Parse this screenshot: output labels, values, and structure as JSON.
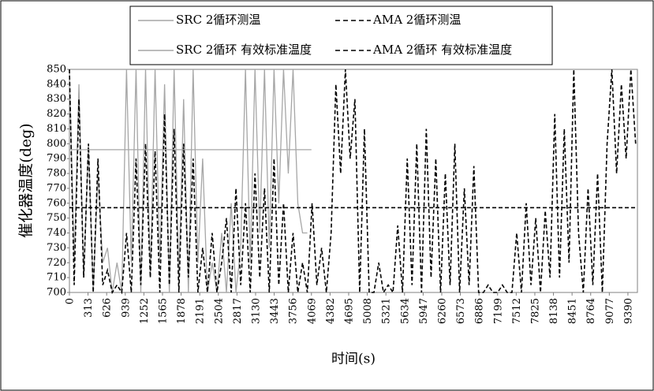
{
  "chart_data": {
    "type": "line",
    "xlabel": "时间(s)",
    "ylabel": "催化器温度(deg)",
    "xlim": [
      0,
      9550
    ],
    "xticks": [
      0,
      313,
      626,
      939,
      1252,
      1565,
      1878,
      2191,
      2504,
      2817,
      3130,
      3443,
      3756,
      4069,
      4382,
      4695,
      5008,
      5321,
      5634,
      5947,
      6260,
      6573,
      6886,
      7199,
      7512,
      7825,
      8138,
      8451,
      8764,
      9077,
      9390
    ],
    "ylim": [
      700,
      850
    ],
    "yticks": [
      700,
      710,
      720,
      730,
      740,
      750,
      760,
      770,
      780,
      790,
      800,
      810,
      820,
      830,
      840,
      850
    ],
    "grid": false,
    "series": [
      {
        "name": "SRC 2循环测温",
        "color": "#a6a6a6",
        "dash": false,
        "x": [
          0,
          80,
          160,
          240,
          320,
          400,
          480,
          560,
          640,
          720,
          800,
          880,
          960,
          1040,
          1120,
          1200,
          1280,
          1360,
          1440,
          1520,
          1600,
          1680,
          1760,
          1840,
          1920,
          2000,
          2080,
          2160,
          2240,
          2320,
          2400,
          2480,
          2560,
          2640,
          2720,
          2800,
          2880,
          2960,
          3040,
          3120,
          3200,
          3280,
          3360,
          3440,
          3520,
          3600,
          3680,
          3760,
          3840,
          3920,
          4000
        ],
        "values": [
          850,
          720,
          840,
          710,
          800,
          700,
          780,
          720,
          730,
          700,
          720,
          700,
          850,
          720,
          850,
          700,
          850,
          710,
          850,
          720,
          840,
          700,
          850,
          710,
          830,
          700,
          850,
          720,
          790,
          700,
          720,
          700,
          740,
          700,
          760,
          700,
          730,
          850,
          720,
          850,
          740,
          850,
          730,
          850,
          760,
          850,
          780,
          850,
          760,
          740,
          740
        ]
      },
      {
        "name": "AMA 2循环测温",
        "color": "#000000",
        "dash": true,
        "x": [
          0,
          80,
          160,
          240,
          320,
          400,
          480,
          560,
          640,
          720,
          800,
          880,
          960,
          1040,
          1120,
          1200,
          1280,
          1360,
          1440,
          1520,
          1600,
          1680,
          1760,
          1840,
          1920,
          2000,
          2080,
          2160,
          2240,
          2320,
          2400,
          2480,
          2560,
          2640,
          2720,
          2800,
          2880,
          2960,
          3040,
          3120,
          3200,
          3280,
          3360,
          3440,
          3520,
          3600,
          3680,
          3760,
          3840,
          3920,
          4000,
          4080,
          4160,
          4240,
          4320,
          4400,
          4480,
          4560,
          4640,
          4720,
          4800,
          4880,
          4960,
          5040,
          5120,
          5200,
          5280,
          5360,
          5440,
          5520,
          5600,
          5680,
          5760,
          5840,
          5920,
          6000,
          6080,
          6160,
          6240,
          6320,
          6400,
          6480,
          6560,
          6640,
          6720,
          6800,
          6880,
          6960,
          7040,
          7120,
          7200,
          7280,
          7360,
          7440,
          7520,
          7600,
          7680,
          7760,
          7840,
          7920,
          8000,
          8080,
          8160,
          8240,
          8320,
          8400,
          8480,
          8560,
          8640,
          8720,
          8800,
          8880,
          8960,
          9040,
          9120,
          9200,
          9280,
          9360,
          9440,
          9520
        ],
        "values": [
          850,
          705,
          830,
          710,
          800,
          700,
          790,
          705,
          715,
          700,
          705,
          700,
          740,
          700,
          790,
          705,
          800,
          710,
          795,
          700,
          820,
          705,
          810,
          700,
          800,
          710,
          790,
          700,
          730,
          700,
          740,
          700,
          720,
          750,
          700,
          770,
          705,
          760,
          700,
          780,
          710,
          770,
          700,
          790,
          705,
          760,
          700,
          740,
          700,
          720,
          700,
          760,
          705,
          730,
          700,
          740,
          840,
          780,
          850,
          790,
          830,
          700,
          810,
          700,
          700,
          720,
          700,
          705,
          700,
          745,
          700,
          790,
          705,
          800,
          700,
          810,
          710,
          790,
          700,
          780,
          705,
          800,
          700,
          770,
          705,
          785,
          700,
          700,
          705,
          700,
          700,
          705,
          700,
          700,
          740,
          700,
          760,
          705,
          750,
          700,
          755,
          710,
          820,
          710,
          810,
          720,
          850,
          740,
          700,
          770,
          705,
          780,
          700,
          800,
          850,
          780,
          840,
          790,
          850,
          800
        ]
      },
      {
        "name": "SRC 2循环 有效标准温度",
        "color": "#a6a6a6",
        "dash": false,
        "x": [
          0,
          4069
        ],
        "values": [
          796,
          796
        ]
      },
      {
        "name": "AMA 2循环 有效标准温度",
        "color": "#000000",
        "dash": true,
        "x": [
          0,
          9550
        ],
        "values": [
          757,
          757
        ]
      }
    ]
  }
}
